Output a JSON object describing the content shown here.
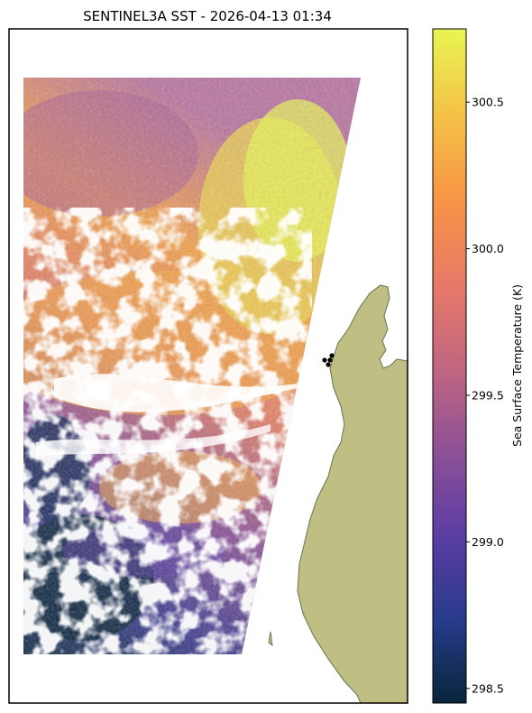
{
  "title": "SENTINEL3A SST - 2026-04-13 01:34",
  "colors": {
    "land": "#bfbf84",
    "land_edge": "#6f7a57",
    "frame": "#000000",
    "station_markers": "#000000",
    "colormap": [
      "#09253a",
      "#283b8c",
      "#5c3da3",
      "#8e5196",
      "#c26780",
      "#e87a66",
      "#f79645",
      "#f4c346",
      "#e9f553"
    ]
  },
  "chart_data": {
    "type": "heatmap",
    "title": "SENTINEL3A SST - 2026-04-13 01:34",
    "colorbar": {
      "label": "Sea Surface Temperature (K)",
      "range": [
        298.45,
        300.75
      ],
      "ticks": [
        298.5,
        299.0,
        299.5,
        300.0,
        300.5
      ],
      "tick_labels": [
        "298.5",
        "299.0",
        "299.5",
        "300.0",
        "300.5"
      ],
      "colormap": "thermal"
    },
    "xlabel": "",
    "ylabel": "",
    "grid": false,
    "features": [
      "satellite swath of sea surface temperature",
      "cloud-masked gaps",
      "coastline with land",
      "station markers"
    ]
  }
}
